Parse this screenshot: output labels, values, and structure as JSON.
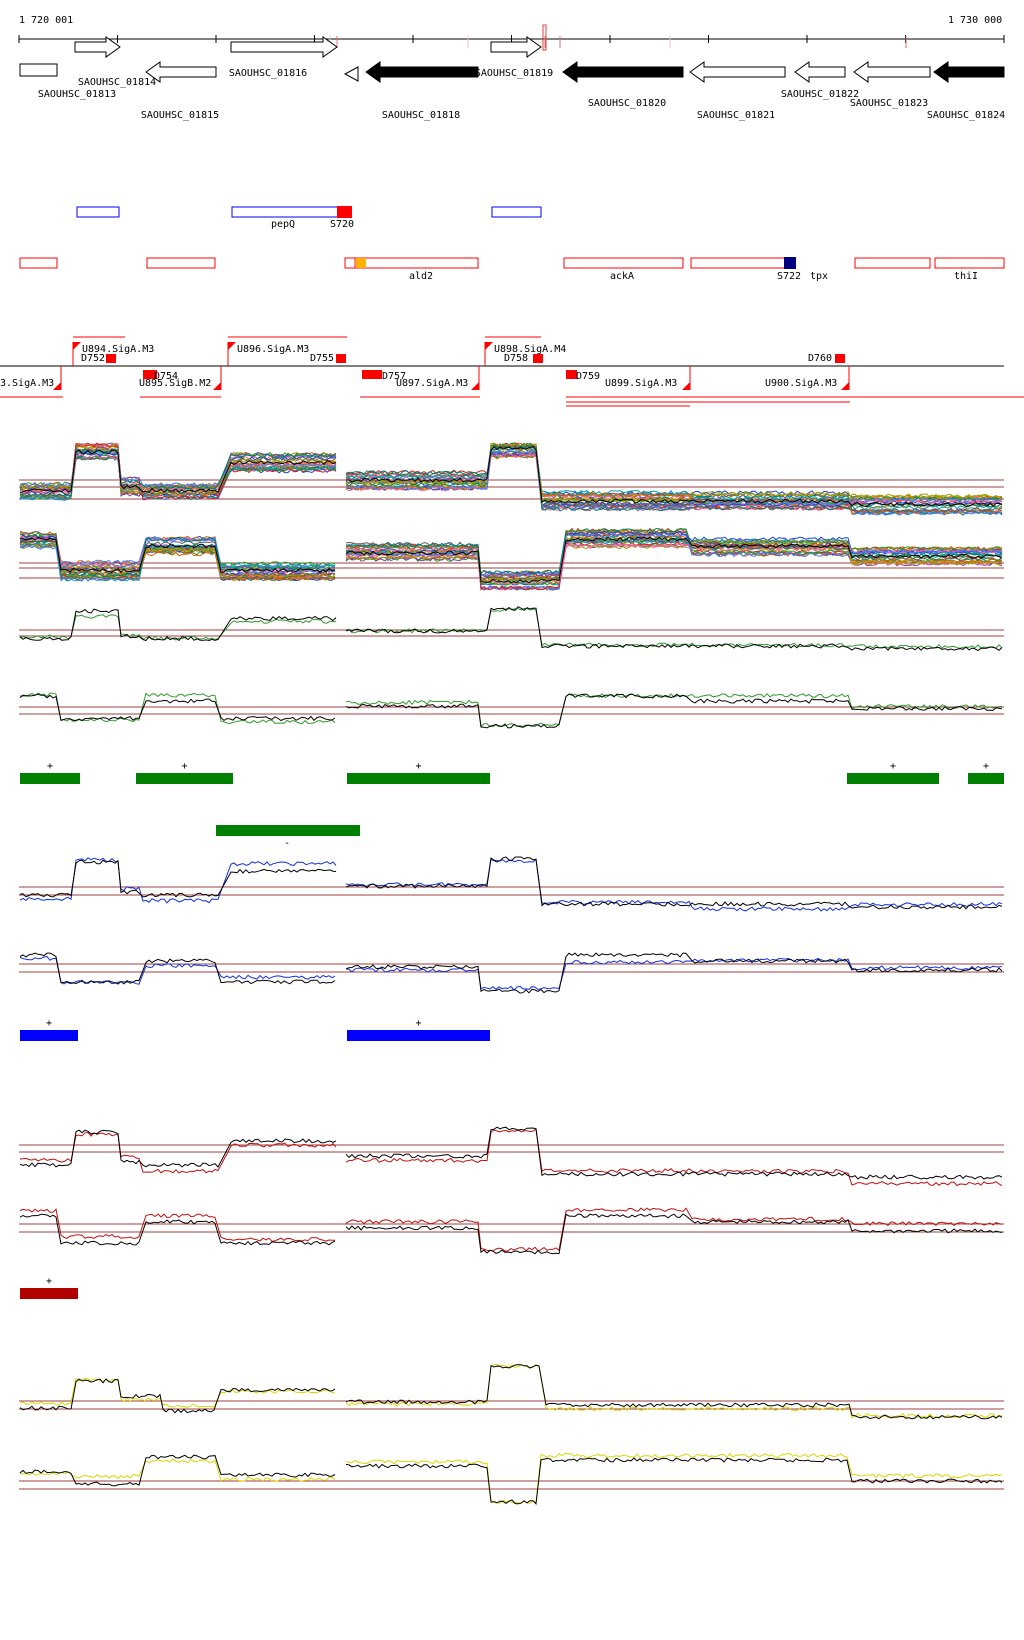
{
  "coords": {
    "start": "1 720 001",
    "end": "1 730 000"
  },
  "colors": {
    "axis": "#000000",
    "gene_fill": "#000000",
    "gene_outline": "#000000",
    "red": "#ff0000",
    "blue": "#0000ff",
    "navy": "#000080",
    "orange": "#ffb000",
    "green": "#008000",
    "green_line": "#2e9b2e",
    "blue_line": "#1030e0",
    "dark_red": "#b00000",
    "red_line": "#c01010",
    "yellow": "#d8d800",
    "ref": "#a04040",
    "black": "#000000"
  },
  "genes": [
    {
      "id": "SAOUHSC_01813",
      "strand": "+",
      "filled": false,
      "label": "SAOUHSC_01813"
    },
    {
      "id": "SAOUHSC_01814",
      "strand": "+",
      "filled": false,
      "label": "SAOUHSC_01814"
    },
    {
      "id": "SAOUHSC_01815",
      "strand": "-",
      "filled": false,
      "label": "SAOUHSC_01815"
    },
    {
      "id": "SAOUHSC_01816",
      "strand": "+",
      "filled": false,
      "label": "SAOUHSC_01816"
    },
    {
      "id": "SAOUHSC_01817",
      "strand": "-",
      "filled": false,
      "label": ""
    },
    {
      "id": "SAOUHSC_01818",
      "strand": "-",
      "filled": true,
      "label": "SAOUHSC_01818"
    },
    {
      "id": "SAOUHSC_01819",
      "strand": "+",
      "filled": false,
      "label": "SAOUHSC_01819"
    },
    {
      "id": "SAOUHSC_01820",
      "strand": "-",
      "filled": true,
      "label": "SAOUHSC_01820"
    },
    {
      "id": "SAOUHSC_01821",
      "strand": "-",
      "filled": false,
      "label": "SAOUHSC_01821"
    },
    {
      "id": "SAOUHSC_01822",
      "strand": "-",
      "filled": false,
      "label": "SAOUHSC_01822"
    },
    {
      "id": "SAOUHSC_01823",
      "strand": "-",
      "filled": false,
      "label": "SAOUHSC_01823"
    },
    {
      "id": "SAOUHSC_01824",
      "strand": "-",
      "filled": true,
      "label": "SAOUHSC_01824"
    }
  ],
  "plus_features": [
    {
      "label": ""
    },
    {
      "label": "pepQ"
    },
    {
      "label": "S720"
    },
    {
      "label": ""
    }
  ],
  "minus_features": [
    {
      "label": ""
    },
    {
      "label": ""
    },
    {
      "label": ""
    },
    {
      "label": "ald2"
    },
    {
      "label": "ackA"
    },
    {
      "label": "S722"
    },
    {
      "label": "tpx"
    },
    {
      "label": ""
    },
    {
      "label": "thiI"
    }
  ],
  "promoters": [
    {
      "label": "U894.SigA.M3"
    },
    {
      "label": "U896.SigA.M3"
    },
    {
      "label": "U898.SigA.M4"
    },
    {
      "label": "3.SigA.M3"
    },
    {
      "label": "U895.SigB.M2"
    },
    {
      "label": "U897.SigA.M3"
    },
    {
      "label": "U899.SigA.M3"
    },
    {
      "label": "U900.SigA.M3"
    }
  ],
  "terminators": [
    {
      "label": "D752"
    },
    {
      "label": "D755"
    },
    {
      "label": "D758"
    },
    {
      "label": "D760"
    },
    {
      "label": "D754"
    },
    {
      "label": "D757"
    },
    {
      "label": "D759"
    }
  ],
  "tracks": {
    "green": {
      "segments": [
        {
          "strand": "+",
          "label": "+"
        },
        {
          "strand": "+",
          "label": "+"
        },
        {
          "strand": "+",
          "label": "+"
        },
        {
          "strand": "+",
          "label": "+"
        },
        {
          "strand": "+",
          "label": "+"
        },
        {
          "strand": "-",
          "label": "-"
        }
      ]
    },
    "blue": {
      "segments": [
        {
          "strand": "+",
          "label": "+"
        },
        {
          "strand": "+",
          "label": "+"
        }
      ]
    },
    "red": {
      "segments": [
        {
          "strand": "+",
          "label": "+"
        }
      ]
    },
    "yellow": {
      "segments": []
    }
  }
}
